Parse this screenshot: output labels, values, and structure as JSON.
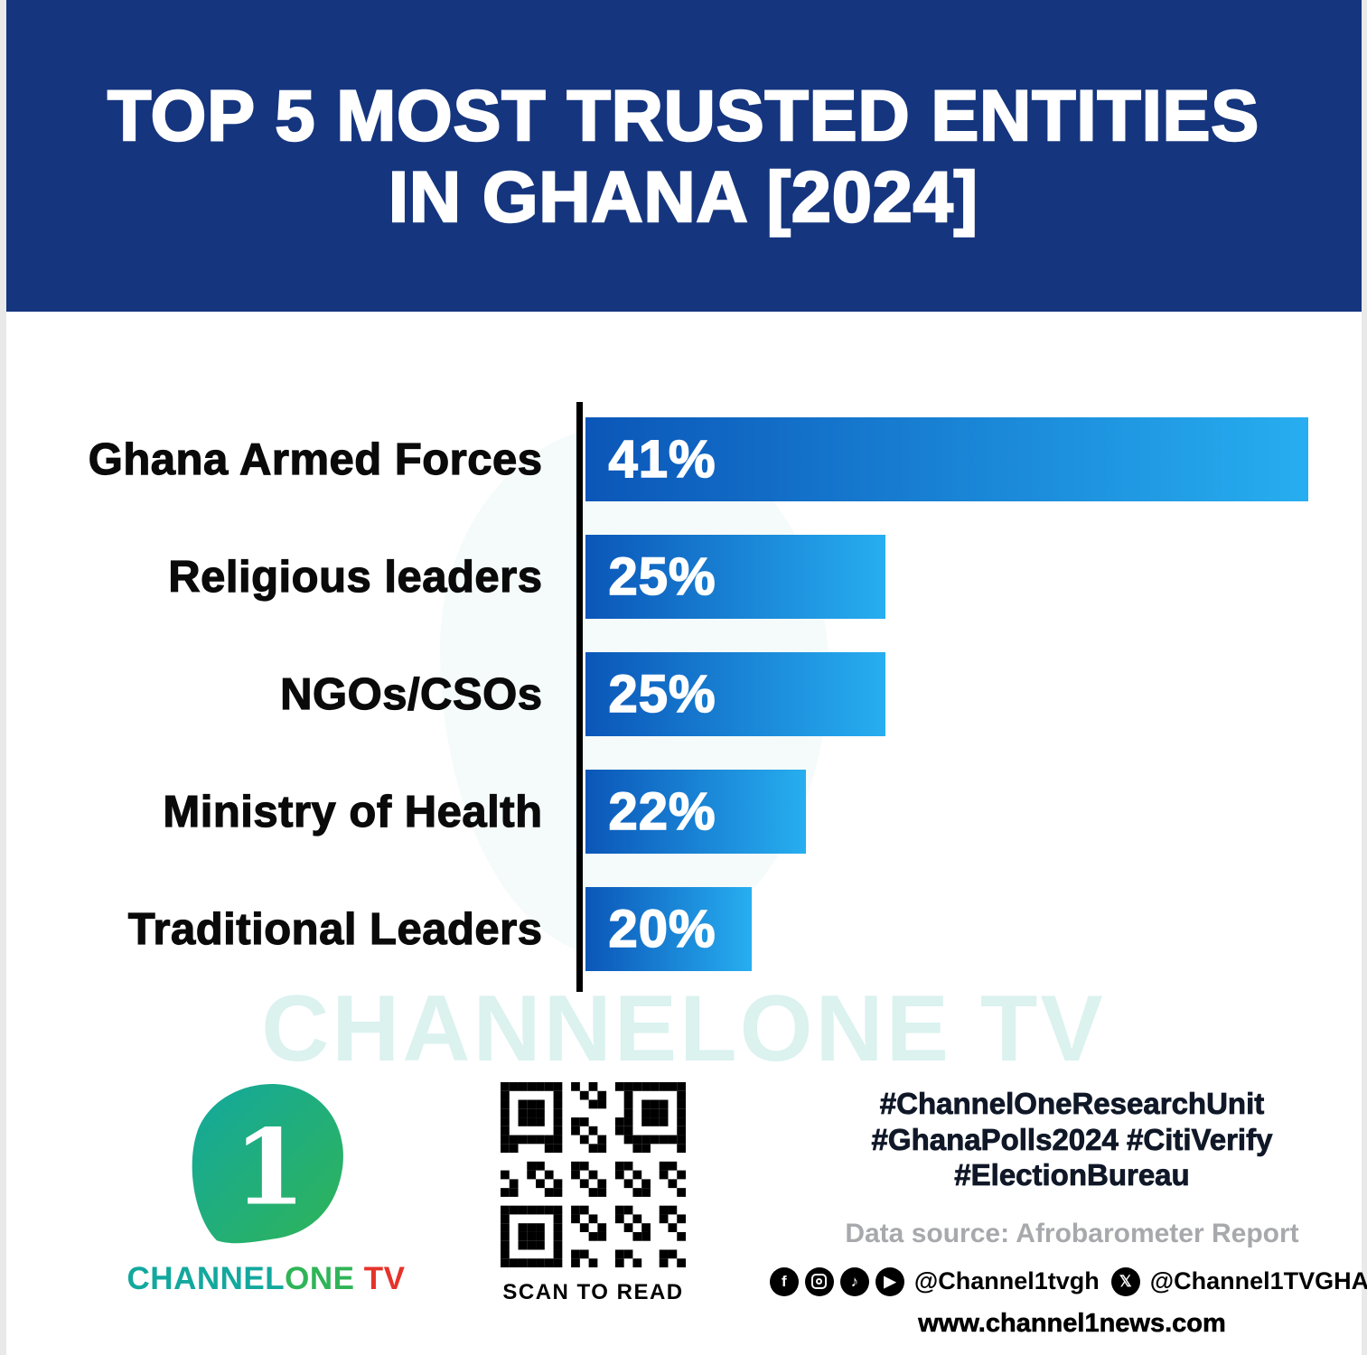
{
  "header": {
    "title_line1": "TOP 5 MOST TRUSTED ENTITIES",
    "title_line2": "IN GHANA [2024]"
  },
  "chart_data": {
    "type": "bar",
    "orientation": "horizontal",
    "title": "Top 5 most trusted entities in Ghana [2024]",
    "categories": [
      "Ghana Armed Forces",
      "Religious leaders",
      "NGOs/CSOs",
      "Ministry of Health",
      "Traditional Leaders"
    ],
    "values": [
      41,
      25,
      25,
      22,
      20
    ],
    "value_labels": [
      "41%",
      "25%",
      "25%",
      "22%",
      "20%"
    ],
    "bar_relative_widths_pct": [
      100,
      41.5,
      41.5,
      30.5,
      23
    ],
    "xlim": [
      0,
      41
    ],
    "grid": false,
    "legend": false,
    "bar_color_start": "#0B56B8",
    "bar_color_end": "#27AEF0",
    "axis_color": "#000000"
  },
  "watermark": "CHANNELONE TV",
  "footer": {
    "logo_numeral": "1",
    "brand": {
      "channel": "CHANNEL",
      "one": "ONE",
      "tv": " TV"
    },
    "qr_caption": "SCAN TO READ",
    "hashtags": [
      "#ChannelOneResearchUnit",
      "#GhanaPolls2024 #CitiVerify",
      "#ElectionBureau"
    ],
    "data_source": "Data source: Afrobarometer Report",
    "social": {
      "handle_main": "@Channel1tvgh",
      "handle_x": "@Channel1TVGHA"
    },
    "website": "www.channel1news.com"
  },
  "colors": {
    "header_bg": "#15357E",
    "bar_start": "#0B56B8",
    "bar_end": "#27AEF0",
    "axis": "#000000",
    "watermark": "#2FB7A6",
    "brand_teal": "#13A89E",
    "brand_green": "#2FB457",
    "brand_red": "#E6332A"
  }
}
